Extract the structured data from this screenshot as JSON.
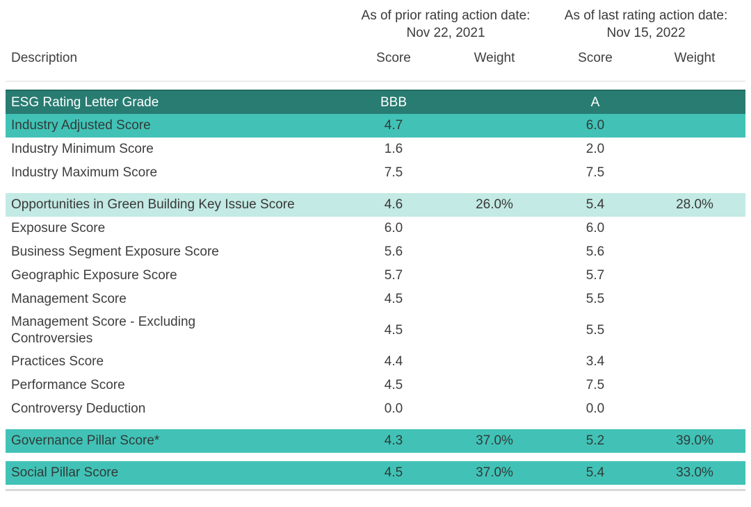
{
  "table": {
    "header": {
      "description_label": "Description",
      "groups": [
        {
          "title": "As of prior rating action date:",
          "date": "Nov 22, 2021"
        },
        {
          "title": "As of last rating action date:",
          "date": "Nov 15, 2022"
        }
      ],
      "sub_columns": [
        "Score",
        "Weight",
        "Score",
        "Weight"
      ]
    },
    "rows": [
      {
        "style": "dark",
        "gap_before": false,
        "label": "ESG Rating Letter Grade",
        "score_prior": "BBB",
        "weight_prior": "",
        "score_last": "A",
        "weight_last": ""
      },
      {
        "style": "medium",
        "gap_before": false,
        "label": "Industry Adjusted Score",
        "score_prior": "4.7",
        "weight_prior": "",
        "score_last": "6.0",
        "weight_last": ""
      },
      {
        "style": "plain",
        "gap_before": false,
        "label": "Industry Minimum Score",
        "score_prior": "1.6",
        "weight_prior": "",
        "score_last": "2.0",
        "weight_last": ""
      },
      {
        "style": "plain",
        "gap_before": false,
        "label": "Industry Maximum Score",
        "score_prior": "7.5",
        "weight_prior": "",
        "score_last": "7.5",
        "weight_last": ""
      },
      {
        "style": "light",
        "gap_before": true,
        "label": "Opportunities in Green Building Key Issue Score",
        "score_prior": "4.6",
        "weight_prior": "26.0%",
        "score_last": "5.4",
        "weight_last": "28.0%"
      },
      {
        "style": "plain",
        "gap_before": false,
        "label": "Exposure Score",
        "score_prior": "6.0",
        "weight_prior": "",
        "score_last": "6.0",
        "weight_last": ""
      },
      {
        "style": "plain",
        "gap_before": false,
        "label": "Business Segment Exposure Score",
        "score_prior": "5.6",
        "weight_prior": "",
        "score_last": "5.6",
        "weight_last": ""
      },
      {
        "style": "plain",
        "gap_before": false,
        "label": "Geographic Exposure Score",
        "score_prior": "5.7",
        "weight_prior": "",
        "score_last": "5.7",
        "weight_last": ""
      },
      {
        "style": "plain",
        "gap_before": false,
        "label": "Management Score",
        "score_prior": "4.5",
        "weight_prior": "",
        "score_last": "5.5",
        "weight_last": ""
      },
      {
        "style": "plain",
        "gap_before": false,
        "label": "Management Score - Excluding\nControversies",
        "score_prior": "4.5",
        "weight_prior": "",
        "score_last": "5.5",
        "weight_last": ""
      },
      {
        "style": "plain",
        "gap_before": false,
        "label": "Practices Score",
        "score_prior": "4.4",
        "weight_prior": "",
        "score_last": "3.4",
        "weight_last": ""
      },
      {
        "style": "plain",
        "gap_before": false,
        "label": "Performance Score",
        "score_prior": "4.5",
        "weight_prior": "",
        "score_last": "7.5",
        "weight_last": ""
      },
      {
        "style": "plain",
        "gap_before": false,
        "label": "Controversy Deduction",
        "score_prior": "0.0",
        "weight_prior": "",
        "score_last": "0.0",
        "weight_last": ""
      },
      {
        "style": "medium",
        "gap_before": true,
        "label": "Governance Pillar Score*",
        "score_prior": "4.3",
        "weight_prior": "37.0%",
        "score_last": "5.2",
        "weight_last": "39.0%"
      },
      {
        "style": "medium",
        "gap_before": true,
        "label": "Social Pillar Score",
        "score_prior": "4.5",
        "weight_prior": "37.0%",
        "score_last": "5.4",
        "weight_last": "33.0%"
      }
    ],
    "colors": {
      "dark_teal": "#287C72",
      "medium_teal": "#42C2B6",
      "light_teal": "#C3EAE4",
      "text_on_dark": "#FFFFFF",
      "text_dark": "#3D3D3D",
      "divider_gray": "#D8D8D8"
    }
  }
}
